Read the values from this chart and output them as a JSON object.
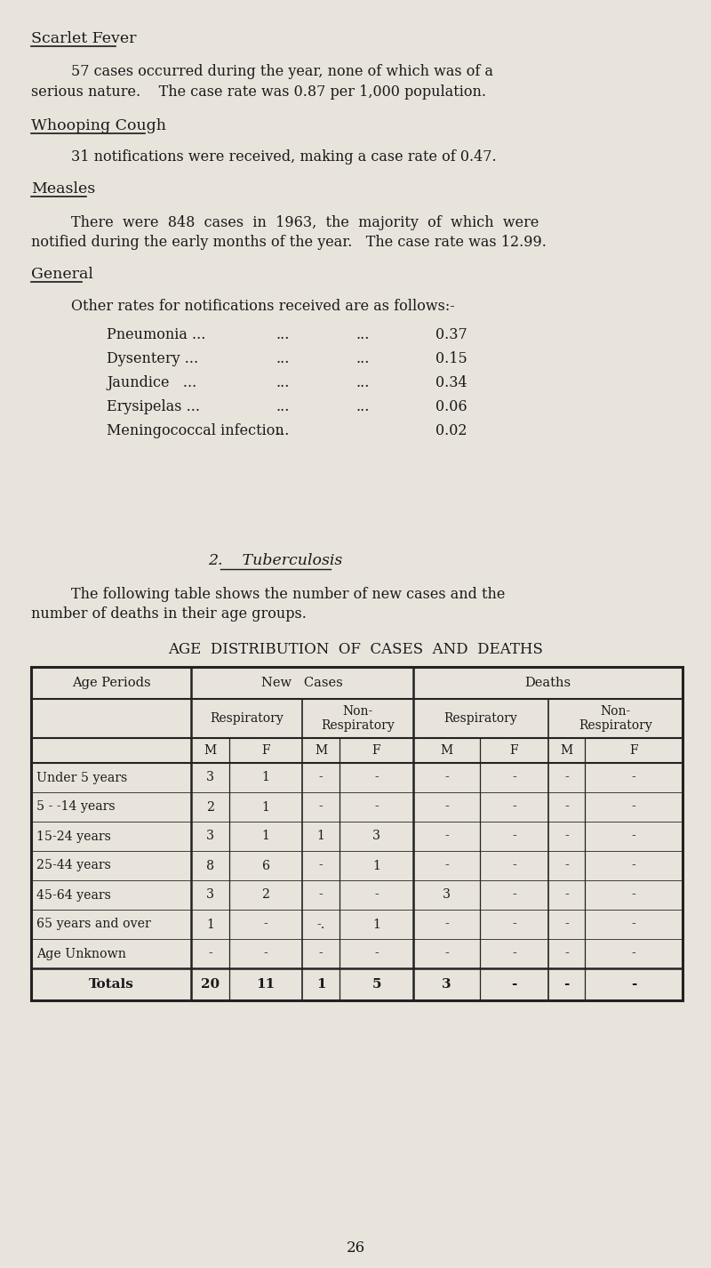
{
  "bg_color": "#e8e4dc",
  "text_color": "#1a1a1a",
  "page_number": "26",
  "scarlet_fever_heading": "Scarlet Fever",
  "scarlet_fever_para1": "57 cases occurred during the year, none of which was of a",
  "scarlet_fever_para2": "serious nature.    The case rate was 0.87 per 1,000 population.",
  "whooping_cough_heading": "Whooping Cough",
  "whooping_cough_para": "31 notifications were received, making a case rate of 0.47.",
  "measles_heading": "Measles",
  "measles_para1": "There  were  848  cases  in  1963,  the  majority  of  which  were",
  "measles_para2": "notified during the early months of the year.   The case rate was 12.99.",
  "general_heading": "General",
  "general_intro": "Other rates for notifications received are as follows:-",
  "tb_heading": "2.    Tuberculosis",
  "tb_para1": "The following table shows the number of new cases and the",
  "tb_para2": "number of deaths in their age groups.",
  "table_title": "AGE  DISTRIBUTION  OF  CASES  AND  DEATHS",
  "mf_header": [
    "M",
    "F",
    "M",
    "F",
    "M",
    "F",
    "M",
    "F"
  ],
  "table_rows": [
    [
      "Under 5 years",
      "3",
      "1",
      "-",
      "-",
      "-",
      "-",
      "-",
      "-"
    ],
    [
      "5 - -14 years",
      "2",
      "1",
      "-",
      "-",
      "-",
      "-",
      "-",
      "-"
    ],
    [
      "15-24 years",
      "3",
      "1",
      "1",
      "3",
      "-",
      "-",
      "-",
      "-"
    ],
    [
      "25-44 years",
      "8",
      "6",
      "-",
      "1",
      "-",
      "-",
      "-",
      "-"
    ],
    [
      "45-64 years",
      "3",
      "2",
      "-",
      "-",
      "3",
      "-",
      "-",
      "-"
    ],
    [
      "65 years and over",
      "1",
      "-",
      "-.",
      "1",
      "-",
      "-",
      "-",
      "-"
    ],
    [
      "Age Unknown",
      "-",
      "-",
      "-",
      "-",
      "-",
      "-",
      "-",
      "-"
    ]
  ],
  "totals_row": [
    "Totals",
    "20",
    "11",
    "1",
    "5",
    "3",
    "-",
    "-",
    "-"
  ],
  "notif_rows": [
    [
      "Pneumonia ...",
      "...",
      "...",
      "0.37"
    ],
    [
      "Dysentery ...",
      "...",
      "...",
      "0.15"
    ],
    [
      "Jaundice   ...",
      "...",
      "...",
      "0.34"
    ],
    [
      "Erysipelas ...",
      "...",
      "...",
      "0.06"
    ],
    [
      "Meningococcal infection",
      "...",
      "",
      "0.02"
    ]
  ]
}
